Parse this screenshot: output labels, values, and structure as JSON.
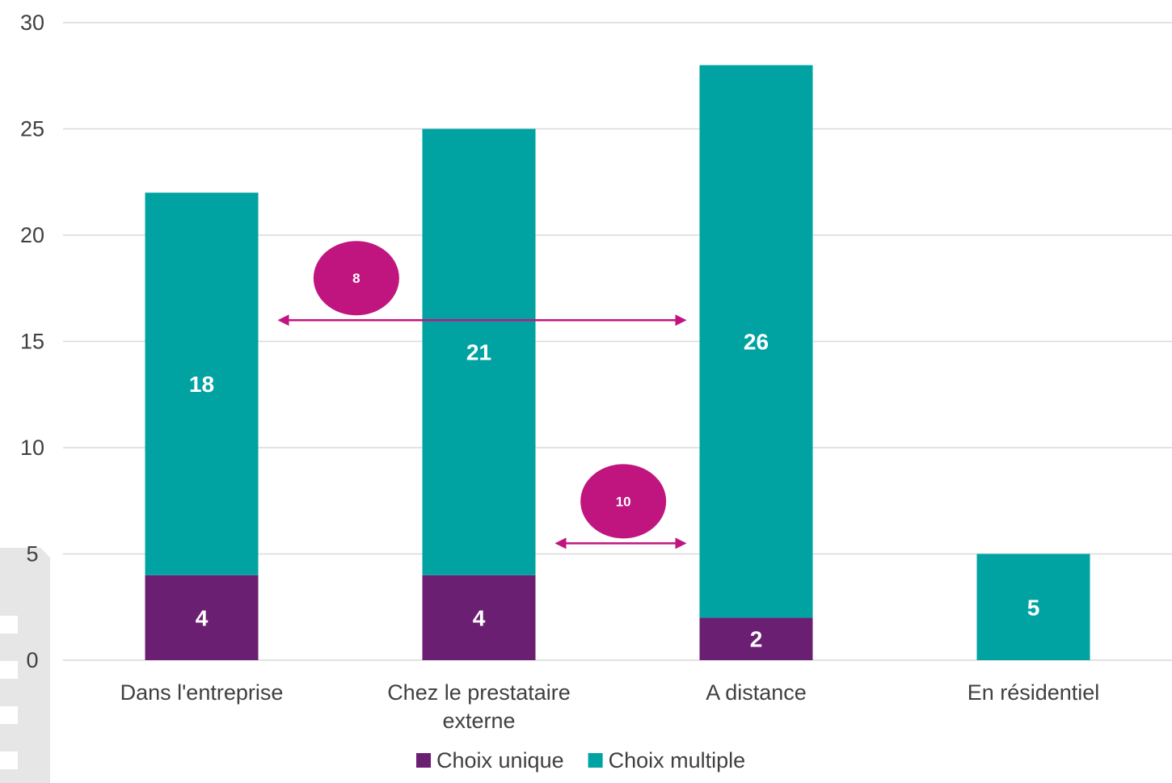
{
  "chart_data": {
    "type": "bar",
    "stacked": true,
    "categories": [
      "Dans l'entreprise",
      "Chez le prestataire externe",
      "A distance",
      "En résidentiel"
    ],
    "category_lines": [
      [
        "Dans l'entreprise"
      ],
      [
        "Chez le prestataire",
        "externe"
      ],
      [
        "A distance"
      ],
      [
        "En résidentiel"
      ]
    ],
    "series": [
      {
        "name": "Choix unique",
        "values": [
          4,
          4,
          2,
          0
        ],
        "color": "#6b1f72"
      },
      {
        "name": "Choix multiple",
        "values": [
          18,
          21,
          26,
          5
        ],
        "color": "#00a3a2"
      }
    ],
    "ylim": [
      0,
      30
    ],
    "yticks": [
      0,
      5,
      10,
      15,
      20,
      25,
      30
    ],
    "grid": true,
    "legend_position": "bottom",
    "annotations": [
      {
        "label": "8",
        "span": [
          "Dans l'entreprise",
          "A distance"
        ],
        "level": 16,
        "color": "#c0157f"
      },
      {
        "label": "10",
        "span": [
          "Chez le prestataire externe",
          "A distance"
        ],
        "level": 5.5,
        "color": "#c0157f"
      }
    ],
    "colors": {
      "grid": "#d9d9d9",
      "text": "#404040",
      "annotation": "#c0157f"
    }
  }
}
